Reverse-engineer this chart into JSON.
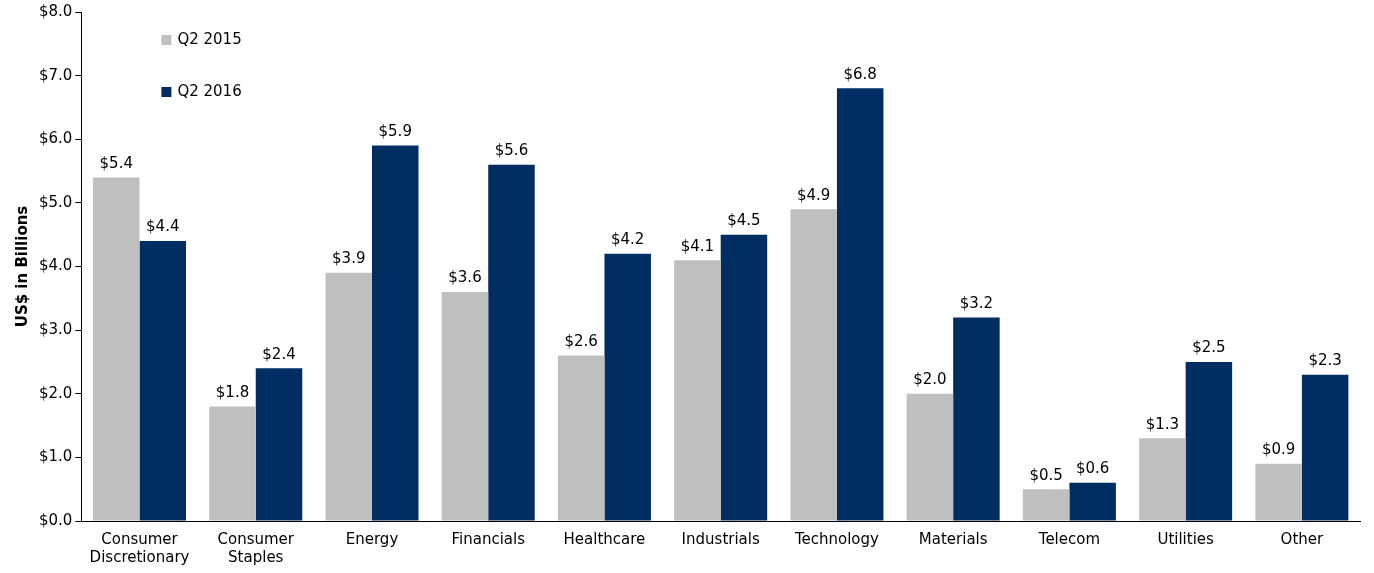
{
  "chart_data": {
    "type": "bar",
    "ylabel": "US$ in Billions",
    "categories": [
      "Consumer Discretionary",
      "Consumer Staples",
      "Energy",
      "Financials",
      "Healthcare",
      "Industrials",
      "Technology",
      "Materials",
      "Telecom",
      "Utilities",
      "Other"
    ],
    "series": [
      {
        "name": "Q2 2015",
        "color": "#bfbfbf",
        "values": [
          5.4,
          1.8,
          3.9,
          3.6,
          2.6,
          4.1,
          4.9,
          2.0,
          0.5,
          1.3,
          0.9
        ],
        "value_labels": [
          "$5.4",
          "$1.8",
          "$3.9",
          "$3.6",
          "$2.6",
          "$4.1",
          "$4.9",
          "$2.0",
          "$0.5",
          "$1.3",
          "$0.9"
        ]
      },
      {
        "name": "Q2 2016",
        "color": "#002d62",
        "values": [
          4.4,
          2.4,
          5.9,
          5.6,
          4.2,
          4.5,
          6.8,
          3.2,
          0.6,
          2.5,
          2.3
        ],
        "value_labels": [
          "$4.4",
          "$2.4",
          "$5.9",
          "$5.6",
          "$4.2",
          "$4.5",
          "$6.8",
          "$3.2",
          "$0.6",
          "$2.5",
          "$2.3"
        ]
      }
    ],
    "ylim": [
      0,
      8
    ],
    "yticks": [
      {
        "value": 0,
        "label": "$0.0"
      },
      {
        "value": 1,
        "label": "$1.0"
      },
      {
        "value": 2,
        "label": "$2.0"
      },
      {
        "value": 3,
        "label": "$3.0"
      },
      {
        "value": 4,
        "label": "$4.0"
      },
      {
        "value": 5,
        "label": "$5.0"
      },
      {
        "value": 6,
        "label": "$6.0"
      },
      {
        "value": 7,
        "label": "$7.0"
      },
      {
        "value": 8,
        "label": "$8.0"
      }
    ],
    "grid": false,
    "legend": "top left"
  }
}
